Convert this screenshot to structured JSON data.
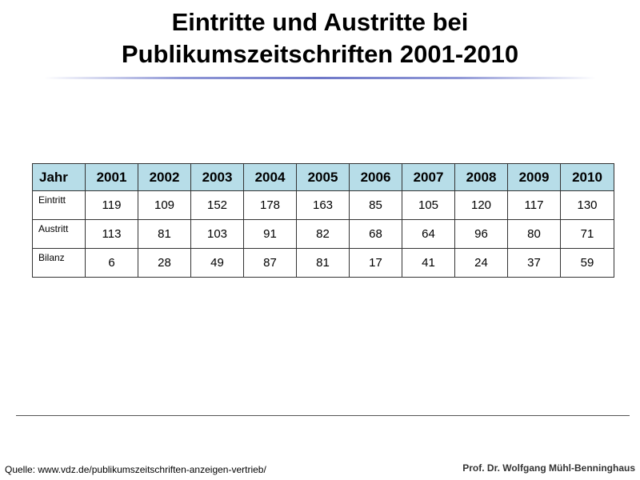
{
  "slide": {
    "title_line1": "Eintritte und Austritte bei",
    "title_line2": "Publikumszeitschriften 2001-2010",
    "source": "Quelle:  www.vdz.de/publikumszeitschriften-anzeigen-vertrieb/",
    "author": "Prof. Dr. Wolfgang Mühl-Benninghaus"
  },
  "table": {
    "header": [
      "Jahr",
      "2001",
      "2002",
      "2003",
      "2004",
      "2005",
      "2006",
      "2007",
      "2008",
      "2009",
      "2010"
    ],
    "rows": [
      {
        "label": "Eintritt",
        "values": [
          "119",
          "109",
          "152",
          "178",
          "163",
          "85",
          "105",
          "120",
          "117",
          "130"
        ]
      },
      {
        "label": "Austritt",
        "values": [
          "113",
          "81",
          "103",
          "91",
          "82",
          "68",
          "64",
          "96",
          "80",
          "71"
        ]
      },
      {
        "label": "Bilanz",
        "values": [
          "6",
          "28",
          "49",
          "87",
          "81",
          "17",
          "41",
          "24",
          "37",
          "59"
        ]
      }
    ]
  },
  "colors": {
    "header_background": "#b7dde8",
    "title_rule": "#6f78c8"
  }
}
